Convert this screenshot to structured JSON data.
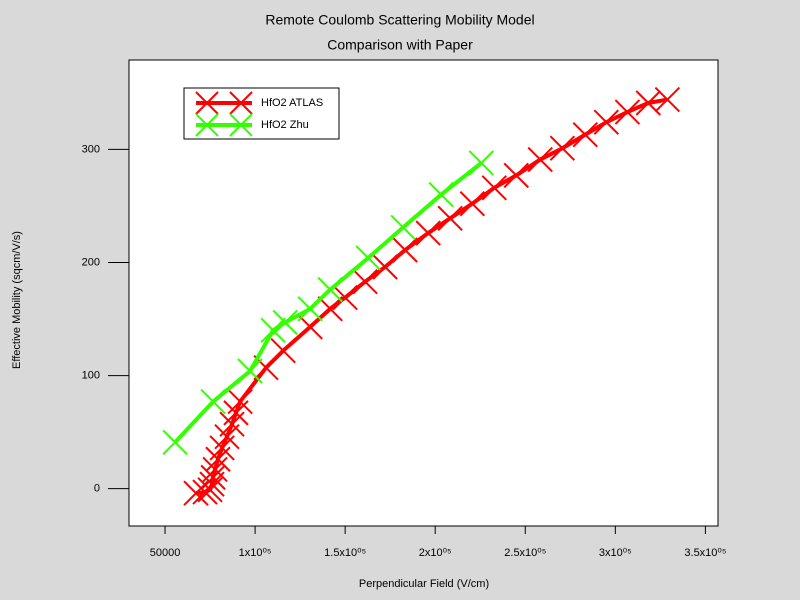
{
  "chart_data": {
    "type": "line",
    "title": "Remote Coulomb Scattering Mobility Model",
    "subtitle": "Comparison with Paper",
    "x_label": "Perpendicular Field (V/cm)",
    "y_label": "Effective Mobility (sqcm/V/s)",
    "xlim": [
      30000,
      357000
    ],
    "ylim": [
      -33,
      379
    ],
    "xticks": [
      50000,
      {
        "value": 100000,
        "label": "1x10⁰⁵"
      },
      {
        "value": 150000,
        "label": "1.5x10⁰⁵"
      },
      {
        "value": 200000,
        "label": "2x10⁰⁵"
      },
      {
        "value": 250000,
        "label": "2.5x10⁰⁵"
      },
      {
        "value": 300000,
        "label": "3x10⁰⁵"
      },
      {
        "value": 350000,
        "label": "3.5x10⁰⁵"
      }
    ],
    "yticks": [
      0,
      100,
      200,
      300
    ],
    "series": [
      {
        "name": "HfO2 ATLAS",
        "color": "#ff0000",
        "x": [
          67200,
          72200,
          75000,
          76100,
          76700,
          77800,
          79400,
          81700,
          84400,
          87200,
          89400,
          91700,
          106100,
          115600,
          130600,
          141700,
          150000,
          161100,
          172200,
          183300,
          196100,
          208300,
          220600,
          232800,
          245000,
          258300,
          270600,
          283300,
          295000,
          306700,
          318300,
          328900
        ],
        "values": [
          -4,
          -3,
          -1,
          4,
          10,
          17,
          26,
          36,
          46,
          57,
          67,
          77,
          107,
          122,
          143,
          159,
          169,
          183,
          196,
          211,
          226,
          239,
          252,
          266,
          277,
          291,
          301,
          313,
          324,
          333,
          341,
          344
        ]
      },
      {
        "name": "HfO2 Zhu",
        "color": "#33ff00",
        "x": [
          55600,
          76700,
          97200,
          110000,
          116700,
          130600,
          141700,
          162800,
          182200,
          203300,
          225600
        ],
        "values": [
          41,
          77,
          104,
          140,
          147,
          159,
          176,
          204,
          231,
          260,
          288
        ]
      }
    ]
  }
}
